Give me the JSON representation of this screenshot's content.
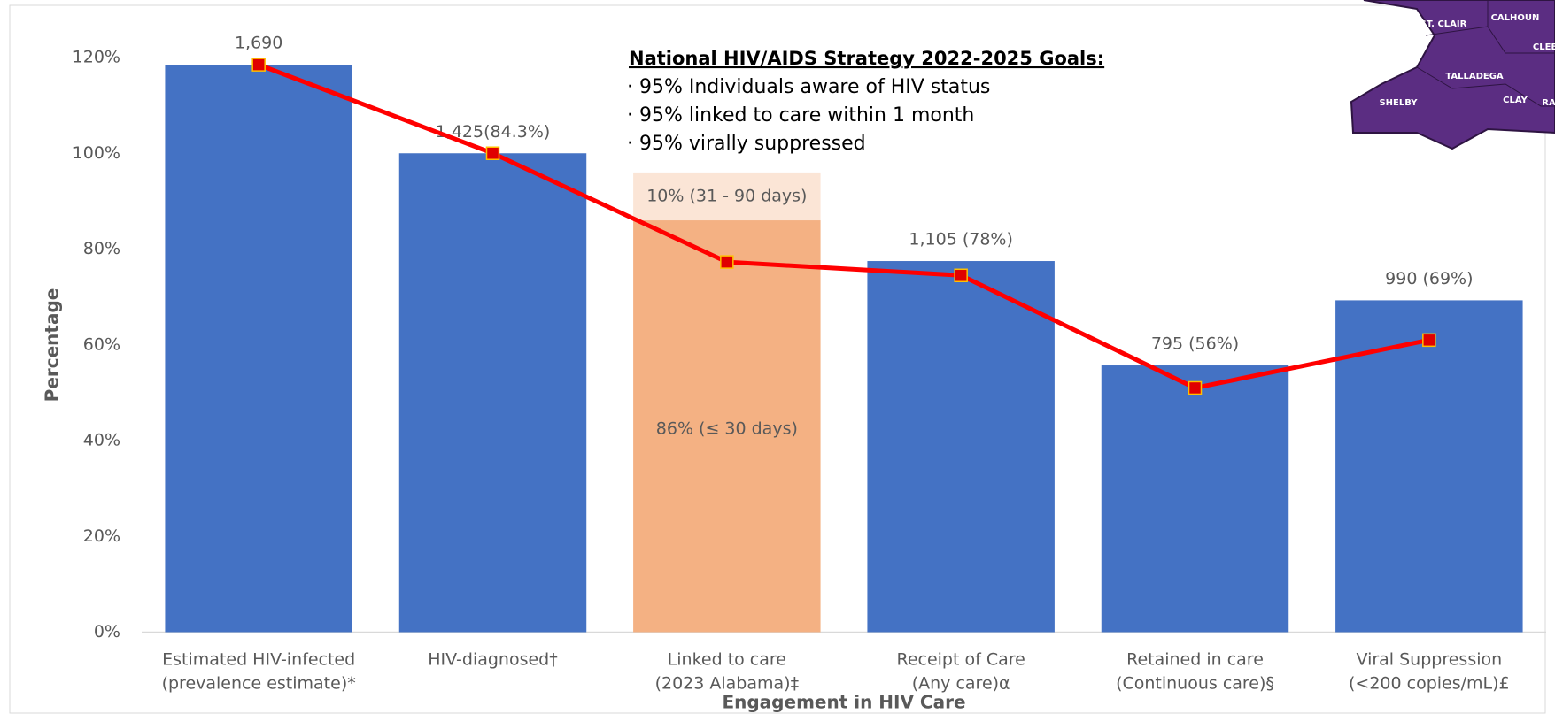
{
  "chart_data": {
    "type": "bar_line",
    "categories": [
      [
        "Estimated HIV-infected",
        "(prevalence estimate)*"
      ],
      [
        "HIV-diagnosed†"
      ],
      [
        "Linked to care",
        "(2023 Alabama)‡"
      ],
      [
        "Receipt of Care",
        "(Any care)α"
      ],
      [
        "Retained in care",
        "(Continuous care)§"
      ],
      [
        "Viral Suppression",
        "(<200 copies/mL)£"
      ]
    ],
    "bars": {
      "color": "#4472c4",
      "values": [
        118.5,
        100,
        null,
        77.5,
        55.7,
        69.3
      ]
    },
    "bar_annotations": [
      "1,690",
      "1,425(84.3%)",
      null,
      "1,105 (78%)",
      "795 (56%)",
      "990 (69%)"
    ],
    "stack": {
      "index": 2,
      "segments": [
        {
          "value": 86,
          "label": "86% (≤ 30 days)",
          "color": "#f4b183"
        },
        {
          "value": 10,
          "label": "10% (31 - 90 days)",
          "color": "#fbe5d6"
        }
      ]
    },
    "line": {
      "color": "#ff0000",
      "marker_fill": "#e00000",
      "marker_edge": "#ffc000",
      "values": [
        118.5,
        100,
        77.3,
        74.5,
        51,
        61
      ]
    },
    "ylim": [
      0,
      120
    ],
    "yticks": [
      {
        "value": 0,
        "label": "0%"
      },
      {
        "value": 20,
        "label": "20%"
      },
      {
        "value": 40,
        "label": "40%"
      },
      {
        "value": 60,
        "label": "60%"
      },
      {
        "value": 80,
        "label": "80%"
      },
      {
        "value": 100,
        "label": "100%"
      },
      {
        "value": 120,
        "label": "120%"
      }
    ],
    "y_axis_label": "Percentage",
    "x_axis_label": "Engagement in HIV Care",
    "goals": {
      "title": "National HIV/AIDS Strategy 2022-2025 Goals:",
      "items": [
        "· 95% Individuals aware of HIV status",
        "· 95% linked to care within 1 month",
        "· 95% virally suppressed"
      ]
    },
    "map_labels": [
      "ST. CLAIR",
      "CALHOUN",
      "CLEB",
      "TALLADEGA",
      "CLAY",
      "SHELBY",
      "RA"
    ]
  }
}
